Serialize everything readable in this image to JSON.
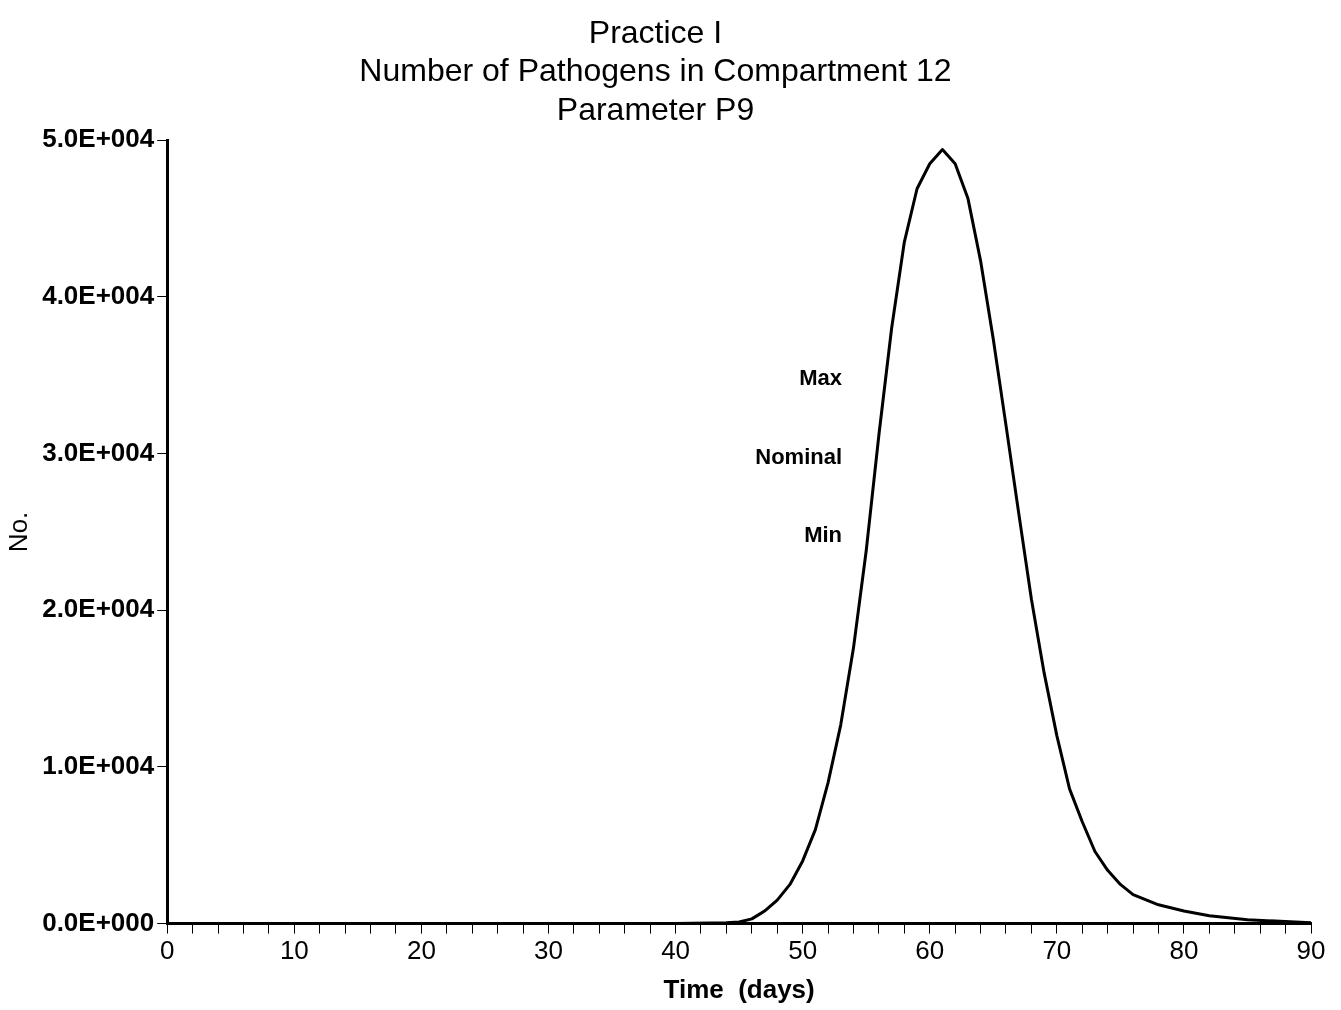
{
  "chart_data": {
    "type": "line",
    "title": "Practice I",
    "subtitle": "Number of Pathogens in Compartment 12\nParameter P9",
    "xlabel": "Time  (days)",
    "ylabel": "No.",
    "x": [
      0,
      10,
      20,
      30,
      40,
      44,
      45,
      46,
      47,
      48,
      49,
      50,
      51,
      52,
      53,
      54,
      55,
      56,
      57,
      58,
      59,
      60,
      61,
      62,
      63,
      64,
      65,
      66,
      67,
      68,
      69,
      70,
      71,
      72,
      73,
      74,
      75,
      76,
      78,
      80,
      82,
      85,
      90
    ],
    "values": [
      0,
      0,
      0,
      0,
      0,
      50,
      100,
      300,
      800,
      1500,
      2500,
      4000,
      6000,
      9000,
      12700,
      17600,
      23800,
      31200,
      38000,
      43500,
      46900,
      48500,
      49400,
      48500,
      46300,
      42300,
      37300,
      31800,
      26200,
      20700,
      16000,
      12000,
      8600,
      6500,
      4600,
      3400,
      2500,
      1850,
      1200,
      800,
      500,
      250,
      50
    ],
    "color": "#000000",
    "marker": "none",
    "line_style": "solid",
    "grid": false,
    "legend": false,
    "xlim": [
      0,
      90
    ],
    "xticks": [
      0,
      {
        "value": 2,
        "label": null
      },
      {
        "value": 4,
        "label": null
      },
      {
        "value": 6,
        "label": null
      },
      {
        "value": 8,
        "label": null
      },
      10,
      {
        "value": 12,
        "label": null
      },
      {
        "value": 14,
        "label": null
      },
      {
        "value": 16,
        "label": null
      },
      {
        "value": 18,
        "label": null
      },
      20,
      {
        "value": 22,
        "label": null
      },
      {
        "value": 24,
        "label": null
      },
      {
        "value": 26,
        "label": null
      },
      {
        "value": 28,
        "label": null
      },
      30,
      {
        "value": 32,
        "label": null
      },
      {
        "value": 34,
        "label": null
      },
      {
        "value": 36,
        "label": null
      },
      {
        "value": 38,
        "label": null
      },
      40,
      {
        "value": 42,
        "label": null
      },
      {
        "value": 44,
        "label": null
      },
      {
        "value": 46,
        "label": null
      },
      {
        "value": 48,
        "label": null
      },
      50,
      {
        "value": 52,
        "label": null
      },
      {
        "value": 54,
        "label": null
      },
      {
        "value": 56,
        "label": null
      },
      {
        "value": 58,
        "label": null
      },
      60,
      {
        "value": 62,
        "label": null
      },
      {
        "value": 64,
        "label": null
      },
      {
        "value": 66,
        "label": null
      },
      {
        "value": 68,
        "label": null
      },
      70,
      {
        "value": 72,
        "label": null
      },
      {
        "value": 74,
        "label": null
      },
      {
        "value": 76,
        "label": null
      },
      {
        "value": 78,
        "label": null
      },
      80,
      {
        "value": 82,
        "label": null
      },
      {
        "value": 84,
        "label": null
      },
      {
        "value": 86,
        "label": null
      },
      {
        "value": 88,
        "label": null
      },
      90
    ],
    "ylim": [
      0,
      50000
    ],
    "yticks": [
      {
        "value": 0,
        "label": "0.0E+000"
      },
      {
        "value": 10000,
        "label": "1.0E+004"
      },
      {
        "value": 20000,
        "label": "2.0E+004"
      },
      {
        "value": 30000,
        "label": "3.0E+004"
      },
      {
        "value": 40000,
        "label": "4.0E+004"
      },
      {
        "value": 50000,
        "label": "5.0E+004"
      }
    ],
    "annotations": [
      "Max",
      "Nominal",
      "Min"
    ]
  }
}
